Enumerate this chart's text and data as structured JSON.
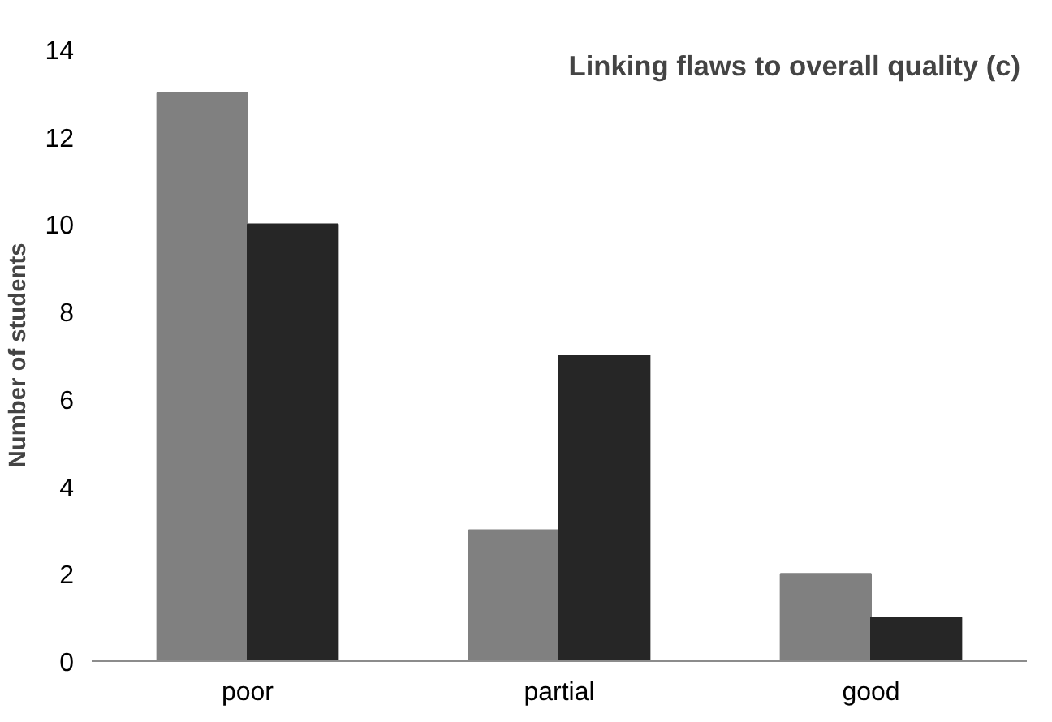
{
  "chart_data": {
    "type": "bar",
    "title": "Linking flaws to overall quality (c)",
    "ylabel": "Number of students",
    "categories": [
      "poor",
      "partial",
      "good"
    ],
    "series": [
      {
        "color": "#808080",
        "values": [
          13,
          3,
          2
        ]
      },
      {
        "color": "#262626",
        "values": [
          10,
          7,
          1
        ]
      }
    ],
    "ylim": [
      0,
      14
    ],
    "yticks": [
      0,
      2,
      4,
      6,
      8,
      10,
      12,
      14
    ],
    "grid": false
  }
}
